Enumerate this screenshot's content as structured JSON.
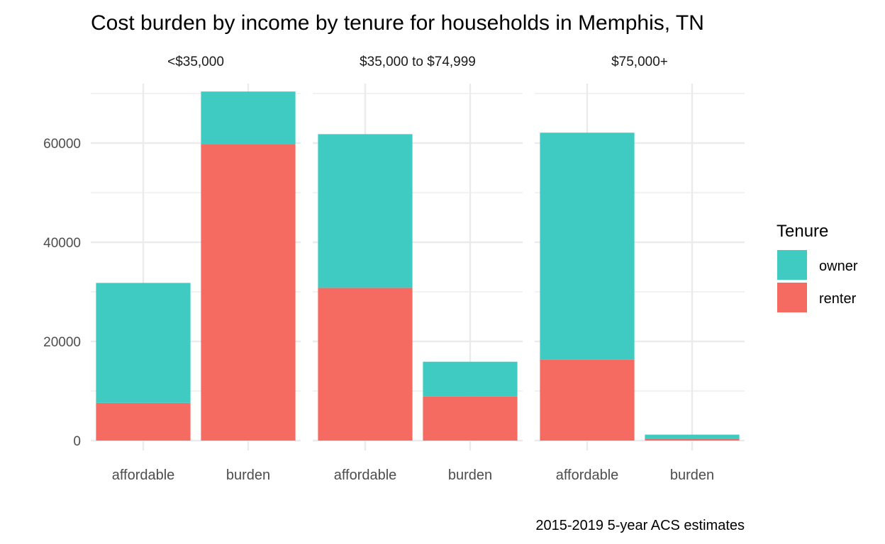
{
  "chart_data": {
    "type": "bar",
    "stacked": true,
    "faceted": true,
    "title": "Cost burden by income by tenure for households in Memphis, TN",
    "caption": "2015-2019 5-year ACS estimates",
    "xlabel": "",
    "ylabel": "",
    "ylim": [
      0,
      72000
    ],
    "yticks": [
      0,
      20000,
      40000,
      60000
    ],
    "yticklabels": [
      "0",
      "20000",
      "40000",
      "60000"
    ],
    "grid": true,
    "categories": [
      "affordable",
      "burden"
    ],
    "legend": {
      "title": "Tenure",
      "position": "right",
      "entries": [
        {
          "name": "owner",
          "color": "#3fcbc2"
        },
        {
          "name": "renter",
          "color": "#f56b62"
        }
      ]
    },
    "facets": [
      {
        "label": "<$35,000",
        "series": [
          {
            "name": "renter",
            "values": [
              7600,
              59800
            ]
          },
          {
            "name": "owner",
            "values": [
              24200,
              10600
            ]
          }
        ]
      },
      {
        "label": "$35,000 to $74,999",
        "series": [
          {
            "name": "renter",
            "values": [
              30800,
              8900
            ]
          },
          {
            "name": "owner",
            "values": [
              31000,
              7000
            ]
          }
        ]
      },
      {
        "label": "$75,000+",
        "series": [
          {
            "name": "renter",
            "values": [
              16300,
              350
            ]
          },
          {
            "name": "owner",
            "values": [
              45800,
              850
            ]
          }
        ]
      }
    ]
  }
}
